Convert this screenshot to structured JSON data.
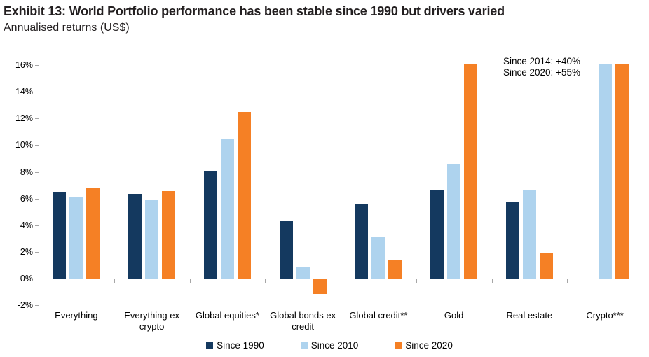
{
  "header": {
    "title": "Exhibit 13: World Portfolio performance has been stable since 1990 but drivers varied",
    "subtitle": "Annualised returns (US$)"
  },
  "chart_data": {
    "type": "bar",
    "title": "Exhibit 13: World Portfolio performance has been stable since 1990 but drivers varied",
    "subtitle": "Annualised returns (US$)",
    "categories": [
      "Everything",
      "Everything ex crypto",
      "Global equities*",
      "Global bonds ex credit",
      "Global credit**",
      "Gold",
      "Real estate",
      "Crypto***"
    ],
    "series": [
      {
        "name": "Since 1990",
        "color": "#14395f",
        "values": [
          6.5,
          6.35,
          8.1,
          4.3,
          5.6,
          6.65,
          5.7,
          null
        ]
      },
      {
        "name": "Since 2010",
        "color": "#aed3ee",
        "values": [
          6.1,
          5.9,
          10.5,
          0.85,
          3.1,
          8.6,
          6.6,
          16.1
        ]
      },
      {
        "name": "Since 2020",
        "color": "#f58025",
        "values": [
          6.8,
          6.55,
          12.5,
          -1.1,
          1.35,
          16.1,
          1.95,
          16.1
        ]
      }
    ],
    "ylim": [
      -2,
      16
    ],
    "yticks": [
      {
        "value": 16,
        "label": "16%"
      },
      {
        "value": 14,
        "label": "14%"
      },
      {
        "value": 12,
        "label": "12%"
      },
      {
        "value": 10,
        "label": "10%"
      },
      {
        "value": 8,
        "label": "8%"
      },
      {
        "value": 6,
        "label": "6%"
      },
      {
        "value": 4,
        "label": "4%"
      },
      {
        "value": 2,
        "label": "2%"
      },
      {
        "value": 0,
        "label": "0%"
      },
      {
        "value": -2,
        "label": "-2%"
      }
    ],
    "grid": false,
    "legend_position": "bottom",
    "annotation_lines": [
      "Since 2014: +40%",
      "Since 2020: +55%"
    ],
    "axis_color": "#a6a6a6"
  }
}
